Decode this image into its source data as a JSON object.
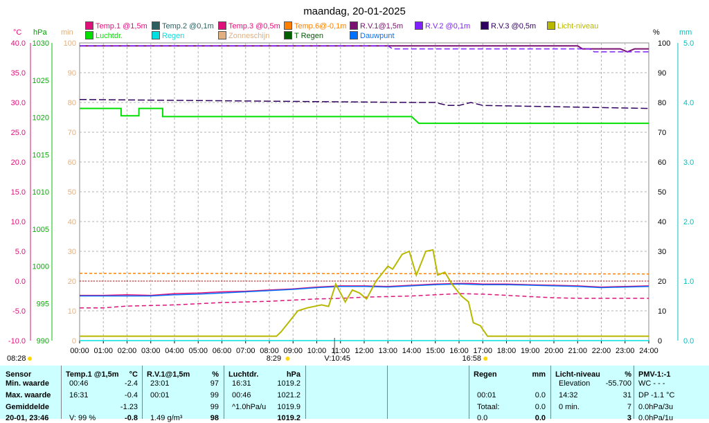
{
  "colors": {
    "temp1": "#e0107a",
    "temp2": "#2a6060",
    "temp3": "#e0107a",
    "temp6": "#ff8000",
    "rv1": "#7a1070",
    "rv2": "#8020ff",
    "rv3": "#300060",
    "licht": "#b8b800",
    "luchtdr": "#00e000",
    "regen": "#00e0e0",
    "zon": "#e0b080",
    "tregen": "#006000",
    "dauwpunt": "#0070ff",
    "table_bg": "#ccffff"
  },
  "chart_data": {
    "type": "line",
    "title": "maandag, 20-01-2025",
    "x_ticks": [
      "00:00",
      "01:00",
      "02:00",
      "03:00",
      "04:00",
      "05:00",
      "06:00",
      "07:00",
      "08:00",
      "09:00",
      "10:00",
      "11:00",
      "12:00",
      "13:00",
      "14:00",
      "15:00",
      "16:00",
      "17:00",
      "18:00",
      "19:00",
      "20:00",
      "21:00",
      "22:00",
      "23:00",
      "24:00"
    ],
    "axes": {
      "temp_c": {
        "unit": "°C",
        "ticks": [
          "40.0",
          "35.0",
          "30.0",
          "25.0",
          "20.0",
          "15.0",
          "10.0",
          "5.0",
          "0.0",
          "-5.0",
          "-10.0"
        ],
        "ylim": [
          -10,
          40
        ]
      },
      "pressure_hpa": {
        "unit": "hPa",
        "ticks": [
          "1030",
          "1025",
          "1020",
          "1015",
          "1010",
          "1005",
          "1000",
          "995",
          "990"
        ],
        "ylim": [
          990,
          1030
        ]
      },
      "minutes": {
        "unit": "min",
        "ticks": [
          "100",
          "90",
          "80",
          "70",
          "60",
          "50",
          "40",
          "30",
          "20",
          "10",
          "0"
        ],
        "ylim": [
          0,
          100
        ]
      },
      "humidity_pct": {
        "unit": "%",
        "ticks": [
          "100",
          "90",
          "80",
          "70",
          "60",
          "50",
          "40",
          "30",
          "20",
          "10",
          "0"
        ],
        "ylim": [
          0,
          100
        ]
      },
      "rain_mm": {
        "unit": "mm",
        "ticks": [
          "5.0",
          "4.0",
          "3.0",
          "2.0",
          "1.0",
          "0.0"
        ],
        "ylim": [
          0,
          5
        ]
      }
    },
    "markers": [
      {
        "label": "08:28",
        "hour": 8.47
      },
      {
        "label": "8:29",
        "hour": 8.48
      },
      {
        "label": "V:10:45",
        "hour": 10.75
      },
      {
        "label": "16:58",
        "hour": 16.97
      }
    ],
    "legend": [
      {
        "name": "Temp.1 @1,5m",
        "key": "temp1"
      },
      {
        "name": "Temp.2 @0,1m",
        "key": "temp2"
      },
      {
        "name": "Temp.3 @0,5m",
        "key": "temp3"
      },
      {
        "name": "Temp.6@-0,1m",
        "key": "temp6"
      },
      {
        "name": "R.V.1@1,5m",
        "key": "rv1"
      },
      {
        "name": "R.V.2 @0,1m",
        "key": "rv2"
      },
      {
        "name": "R.V.3 @0,5m",
        "key": "rv3"
      },
      {
        "name": "Licht-niveau",
        "key": "licht"
      },
      {
        "name": "Luchtdr.",
        "key": "luchtdr"
      },
      {
        "name": "Regen",
        "key": "regen"
      },
      {
        "name": "Zonneschijn",
        "key": "zon"
      },
      {
        "name": "T Regen",
        "key": "tregen"
      },
      {
        "name": "Dauwpunt",
        "key": "dauwpunt"
      }
    ],
    "series": [
      {
        "name": "Temp.1 @1,5m",
        "key": "temp1",
        "axis": "temp_c",
        "dash": "",
        "points": [
          [
            0,
            -2.4
          ],
          [
            1,
            -2.4
          ],
          [
            2,
            -2.3
          ],
          [
            3,
            -2.4
          ],
          [
            4,
            -2.1
          ],
          [
            5,
            -2.0
          ],
          [
            6,
            -1.8
          ],
          [
            7,
            -1.7
          ],
          [
            8,
            -1.5
          ],
          [
            9,
            -1.3
          ],
          [
            10,
            -1.0
          ],
          [
            11,
            -0.8
          ],
          [
            12,
            -0.8
          ],
          [
            13,
            -0.9
          ],
          [
            14,
            -0.7
          ],
          [
            15,
            -0.5
          ],
          [
            16,
            -0.4
          ],
          [
            16.5,
            -0.4
          ],
          [
            17,
            -0.5
          ],
          [
            18,
            -0.5
          ],
          [
            19,
            -0.6
          ],
          [
            20,
            -0.7
          ],
          [
            21,
            -0.8
          ],
          [
            22,
            -1.0
          ],
          [
            23,
            -0.9
          ],
          [
            24,
            -0.8
          ]
        ]
      },
      {
        "name": "Dauwpunt",
        "key": "dauwpunt",
        "axis": "temp_c",
        "dash": "",
        "points": [
          [
            0,
            -2.5
          ],
          [
            1,
            -2.5
          ],
          [
            2,
            -2.5
          ],
          [
            3,
            -2.5
          ],
          [
            4,
            -2.3
          ],
          [
            5,
            -2.2
          ],
          [
            6,
            -2.0
          ],
          [
            7,
            -1.8
          ],
          [
            8,
            -1.6
          ],
          [
            9,
            -1.4
          ],
          [
            10,
            -1.1
          ],
          [
            11,
            -0.9
          ],
          [
            12,
            -0.9
          ],
          [
            13,
            -1.0
          ],
          [
            14,
            -0.8
          ],
          [
            15,
            -0.6
          ],
          [
            16,
            -0.5
          ],
          [
            17,
            -0.6
          ],
          [
            18,
            -0.6
          ],
          [
            19,
            -0.7
          ],
          [
            20,
            -0.8
          ],
          [
            21,
            -0.9
          ],
          [
            22,
            -1.1
          ],
          [
            23,
            -1.0
          ],
          [
            24,
            -0.9
          ]
        ]
      },
      {
        "name": "Temp.3 @0,5m",
        "key": "temp3",
        "axis": "temp_c",
        "dash": "6,4",
        "points": [
          [
            0,
            -4.5
          ],
          [
            1,
            -4.5
          ],
          [
            2,
            -4.2
          ],
          [
            3,
            -4.1
          ],
          [
            4,
            -4.0
          ],
          [
            5,
            -3.8
          ],
          [
            6,
            -3.6
          ],
          [
            7,
            -3.5
          ],
          [
            8,
            -3.4
          ],
          [
            9,
            -3.2
          ],
          [
            10,
            -3.0
          ],
          [
            11,
            -2.9
          ],
          [
            12,
            -2.7
          ],
          [
            13,
            -2.6
          ],
          [
            14,
            -2.5
          ],
          [
            15,
            -2.3
          ],
          [
            16,
            -2.1
          ],
          [
            17,
            -2.2
          ],
          [
            18,
            -2.4
          ],
          [
            19,
            -2.6
          ],
          [
            20,
            -2.8
          ],
          [
            21,
            -2.9
          ],
          [
            22,
            -2.9
          ],
          [
            23,
            -2.9
          ],
          [
            24,
            -2.9
          ]
        ]
      },
      {
        "name": "Temp.6@-0,1m",
        "key": "temp6",
        "axis": "temp_c",
        "dash": "4,3",
        "points": [
          [
            0,
            1.3
          ],
          [
            24,
            1.2
          ]
        ]
      },
      {
        "name": "Luchtdr.",
        "key": "luchtdr",
        "axis": "pressure_hpa",
        "dash": "",
        "points": [
          [
            0,
            1021.2
          ],
          [
            1.75,
            1021.2
          ],
          [
            1.75,
            1020.2
          ],
          [
            2.5,
            1020.2
          ],
          [
            2.5,
            1021.2
          ],
          [
            3.5,
            1021.2
          ],
          [
            3.5,
            1020.1
          ],
          [
            14,
            1020.1
          ],
          [
            14.3,
            1019.2
          ],
          [
            24,
            1019.2
          ]
        ]
      },
      {
        "name": "R.V.1@1,5m",
        "key": "rv1",
        "axis": "humidity_pct",
        "dash": "",
        "points": [
          [
            0,
            99
          ],
          [
            21,
            99
          ],
          [
            21.2,
            98
          ],
          [
            22.8,
            98
          ],
          [
            23.1,
            97
          ],
          [
            23.4,
            98
          ],
          [
            24,
            98
          ]
        ]
      },
      {
        "name": "R.V.2 @0,1m",
        "key": "rv2",
        "axis": "humidity_pct",
        "dash": "8,4",
        "points": [
          [
            0,
            99
          ],
          [
            13,
            99
          ],
          [
            13.2,
            98
          ],
          [
            21.5,
            98
          ],
          [
            21.7,
            97
          ],
          [
            24,
            97
          ]
        ]
      },
      {
        "name": "R.V.3 @0,5m",
        "key": "rv3",
        "axis": "humidity_pct",
        "dash": "10,4",
        "points": [
          [
            0,
            81
          ],
          [
            14,
            80
          ],
          [
            15,
            80
          ],
          [
            15.5,
            79
          ],
          [
            16,
            79
          ],
          [
            16.5,
            80
          ],
          [
            17,
            79
          ],
          [
            24,
            78
          ]
        ]
      },
      {
        "name": "Licht-niveau",
        "key": "licht",
        "axis": "minutes",
        "dash": "",
        "points": [
          [
            0,
            1.5
          ],
          [
            8.3,
            1.5
          ],
          [
            8.5,
            3
          ],
          [
            8.8,
            6
          ],
          [
            9.2,
            10
          ],
          [
            9.6,
            11
          ],
          [
            10.2,
            12
          ],
          [
            10.5,
            11.5
          ],
          [
            10.8,
            19
          ],
          [
            11.2,
            13
          ],
          [
            11.5,
            17
          ],
          [
            11.8,
            16
          ],
          [
            12.1,
            14
          ],
          [
            12.5,
            20
          ],
          [
            13,
            25
          ],
          [
            13.2,
            24
          ],
          [
            13.6,
            29
          ],
          [
            13.9,
            30
          ],
          [
            14.2,
            22
          ],
          [
            14.4,
            26
          ],
          [
            14.6,
            30
          ],
          [
            14.9,
            30.5
          ],
          [
            15.1,
            22
          ],
          [
            15.4,
            23
          ],
          [
            15.7,
            19
          ],
          [
            16.1,
            15
          ],
          [
            16.4,
            13
          ],
          [
            16.6,
            6
          ],
          [
            16.9,
            5
          ],
          [
            17.2,
            1.5
          ],
          [
            24,
            1.5
          ]
        ]
      },
      {
        "name": "Regen",
        "key": "regen",
        "axis": "rain_mm",
        "dash": "",
        "points": [
          [
            0,
            0
          ],
          [
            24,
            0
          ]
        ]
      }
    ]
  },
  "table": {
    "sensor": {
      "title": "Sensor",
      "rows": [
        "Min. waarde",
        "Max. waarde",
        "Gemiddelde",
        "20-01, 23:46"
      ]
    },
    "temp1": {
      "title": "Temp.1 @1,5m",
      "unit": "°C",
      "rows": [
        [
          "00:46",
          "-2.4"
        ],
        [
          "16:31",
          "-0.4"
        ],
        [
          "",
          "-1.23"
        ],
        [
          "V: 99 %",
          "-0.8"
        ]
      ]
    },
    "rv1": {
      "title": "R.V.1@1,5m",
      "unit": "%",
      "rows": [
        [
          "23:01",
          "97"
        ],
        [
          "00:01",
          "99"
        ],
        [
          "",
          "99"
        ],
        [
          "1.49 g/m³",
          "98"
        ]
      ]
    },
    "luchtdr": {
      "title": "Luchtdr.",
      "unit": "hPa",
      "rows": [
        [
          "16:31",
          "1019.2"
        ],
        [
          "00:46",
          "1021.2"
        ],
        [
          "^1.0hPa/u",
          "1019.9"
        ],
        [
          "",
          "1019.2"
        ]
      ]
    },
    "regen": {
      "title": "Regen",
      "unit": "mm",
      "rows": [
        [
          "",
          ""
        ],
        [
          "00:01",
          "0.0"
        ],
        [
          "Totaal:",
          "0.0"
        ],
        [
          "0.0",
          "0.0"
        ]
      ]
    },
    "licht": {
      "title": "Licht-niveau",
      "unit": "%",
      "rows": [
        [
          "Elevation",
          "-55.700"
        ],
        [
          "14:32",
          "31"
        ],
        [
          "0 min.",
          "7"
        ],
        [
          "",
          "3"
        ]
      ]
    },
    "pmv": {
      "title": "PMV-1:-1",
      "rows": [
        "WC - - -",
        "DP -1.1 °C",
        "0.0hPa/3u",
        "0.0hPa/1u"
      ]
    }
  }
}
